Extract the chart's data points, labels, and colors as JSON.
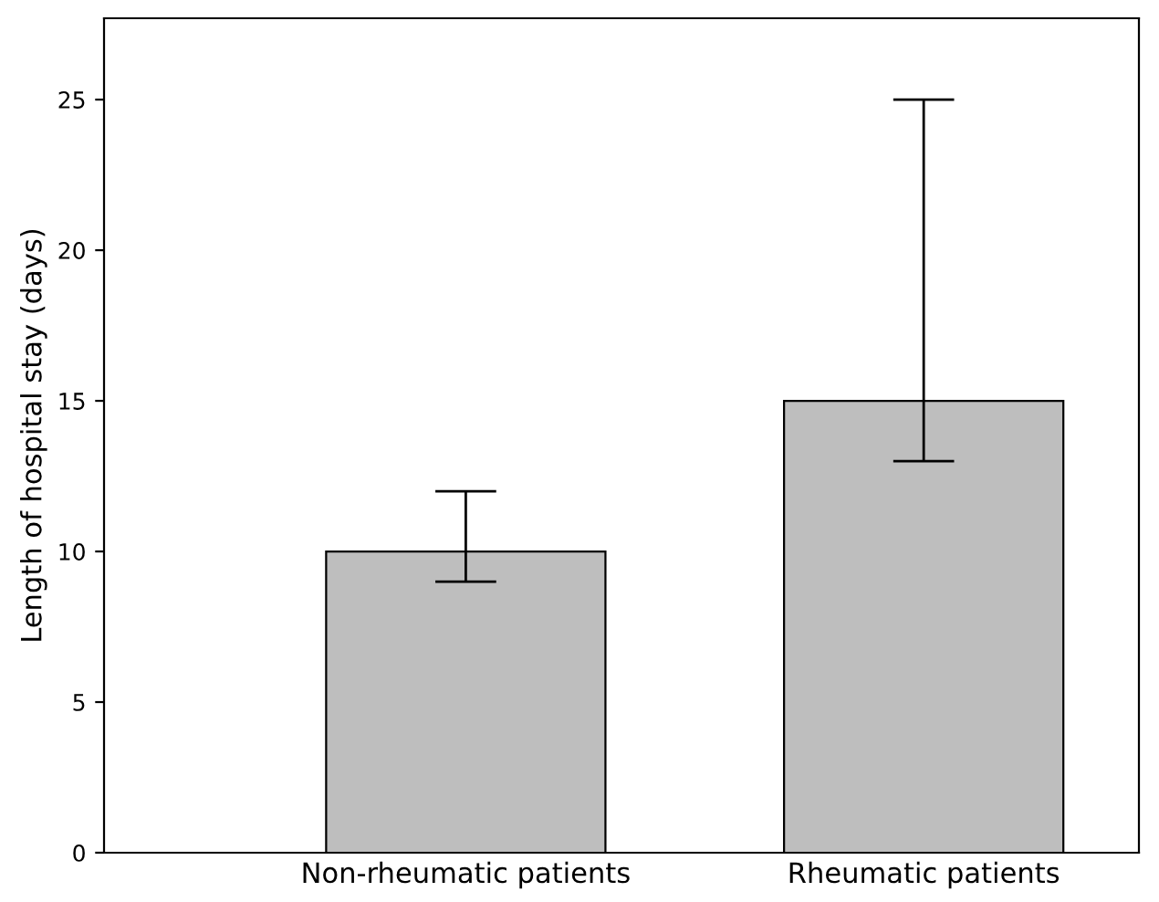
{
  "chart_data": {
    "type": "bar",
    "ylabel": "Length of hospital stay (days)",
    "categories": [
      "Non-rheumatic patients",
      "Rheumatic patients"
    ],
    "values": [
      10,
      15
    ],
    "color": "#bebebe",
    "errors": [
      [
        9,
        12
      ],
      [
        13,
        25
      ]
    ],
    "ylim": [
      0,
      27.7
    ],
    "yticks": [
      0,
      5,
      10,
      15,
      20,
      25
    ],
    "grid": false
  }
}
